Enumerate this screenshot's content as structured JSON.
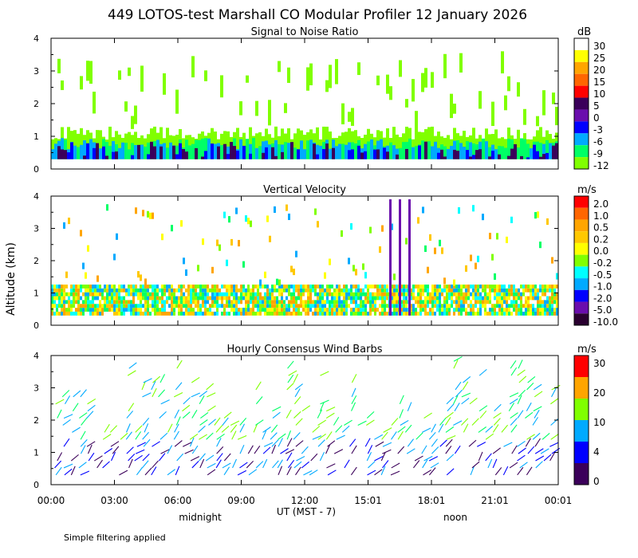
{
  "title": "449 LOTOS-test Marshall CO Modular Profiler 12 January 2026",
  "ylabel": "Altitude (km)",
  "xlabel": "UT  (MST - 7)",
  "x_ticks": [
    "00:00",
    "03:00",
    "06:00",
    "09:00",
    "12:00",
    "15:01",
    "18:01",
    "21:01",
    "00:01"
  ],
  "midnight_label": "midnight",
  "noon_label": "noon",
  "footer": "Simple filtering applied",
  "colors": {
    "white": "#ffffff",
    "yellow": "#ffff00",
    "orange": "#ffa500",
    "dark_orange": "#ff6600",
    "red": "#ff0000",
    "dark_purple": "#3b005a",
    "purple": "#6a0dad",
    "blue": "#0000ff",
    "sky": "#00aaff",
    "cyan": "#00ffff",
    "green": "#00ff66",
    "lime": "#80ff00",
    "dark": "#2a0030"
  },
  "chart_data": [
    {
      "type": "heatmap",
      "title": "Signal to Noise Ratio",
      "units": "dB",
      "ylim": [
        0,
        4
      ],
      "yticks": [
        "0",
        "1",
        "2",
        "3",
        "4"
      ],
      "colorbar_labels": [
        "30",
        "25",
        "20",
        "15",
        "10",
        "5",
        "0",
        "-3",
        "-6",
        "-9",
        "-12"
      ]
    },
    {
      "type": "heatmap",
      "title": "Vertical Velocity",
      "units": "m/s",
      "ylim": [
        0,
        4
      ],
      "yticks": [
        "0",
        "1",
        "2",
        "3",
        "4"
      ],
      "colorbar_labels": [
        "2.0",
        "1.0",
        "0.5",
        "0.2",
        "0.0",
        "-0.2",
        "-0.5",
        "-1.0",
        "-2.0",
        "-5.0",
        "-10.0"
      ]
    },
    {
      "type": "scatter",
      "title": "Hourly Consensus Wind Barbs",
      "units": "m/s",
      "ylim": [
        0,
        4
      ],
      "yticks": [
        "0",
        "1",
        "2",
        "3",
        "4"
      ],
      "colorbar_labels": [
        "30",
        "20",
        "10",
        "4",
        "0"
      ]
    }
  ]
}
